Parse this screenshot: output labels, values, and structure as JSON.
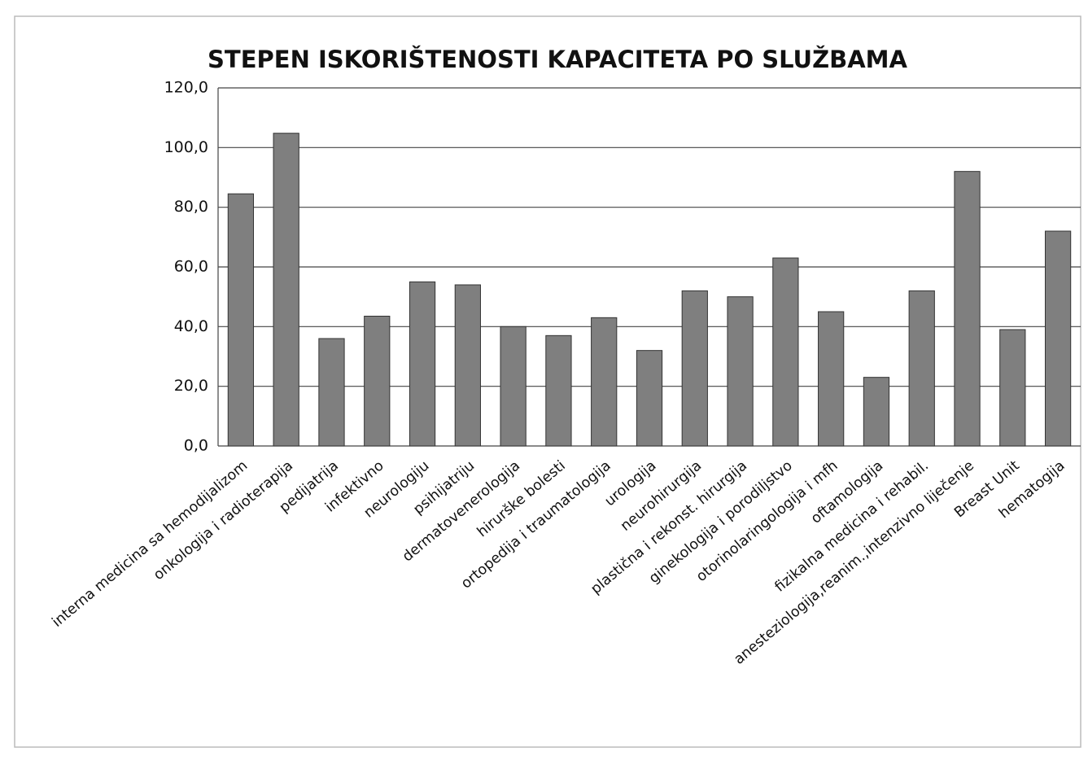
{
  "chart_data": {
    "type": "bar",
    "title": "STEPEN ISKORIŠTENOSTI KAPACITETA PO SLUŽBAMA",
    "categories": [
      "interna medicina sa hemodijalizom",
      "onkologija i radioterapija",
      "pedijatrija",
      "infektivno",
      "neurologiju",
      "psihijatriju",
      "dermatovenerologija",
      "hirurške bolesti",
      "ortopedija i traumatologija",
      "urologija",
      "neurohirurgija",
      "plastična i rekonst. hirurgija",
      "ginekologija i porodiljstvo",
      "otorinolaringologija i mfh",
      "oftamologija",
      "fizikalna medicina i rehabil.",
      "anesteziologija,reanim.,intenzivno liječenje",
      "Breast Unit",
      "hematogija"
    ],
    "values": [
      84.5,
      104.8,
      36,
      43.5,
      55,
      54,
      40,
      37,
      43,
      32,
      52,
      50,
      63,
      45,
      23,
      52,
      92,
      39,
      72
    ],
    "color": "#7f7f7f",
    "ylim": [
      0,
      120
    ],
    "yticks": [
      {
        "value": 0,
        "label": "0,0"
      },
      {
        "value": 20,
        "label": "20,0"
      },
      {
        "value": 40,
        "label": "40,0"
      },
      {
        "value": 60,
        "label": "60,0"
      },
      {
        "value": 80,
        "label": "80,0"
      },
      {
        "value": 100,
        "label": "100,0"
      },
      {
        "value": 120,
        "label": "120,0"
      }
    ],
    "grid": true
  }
}
